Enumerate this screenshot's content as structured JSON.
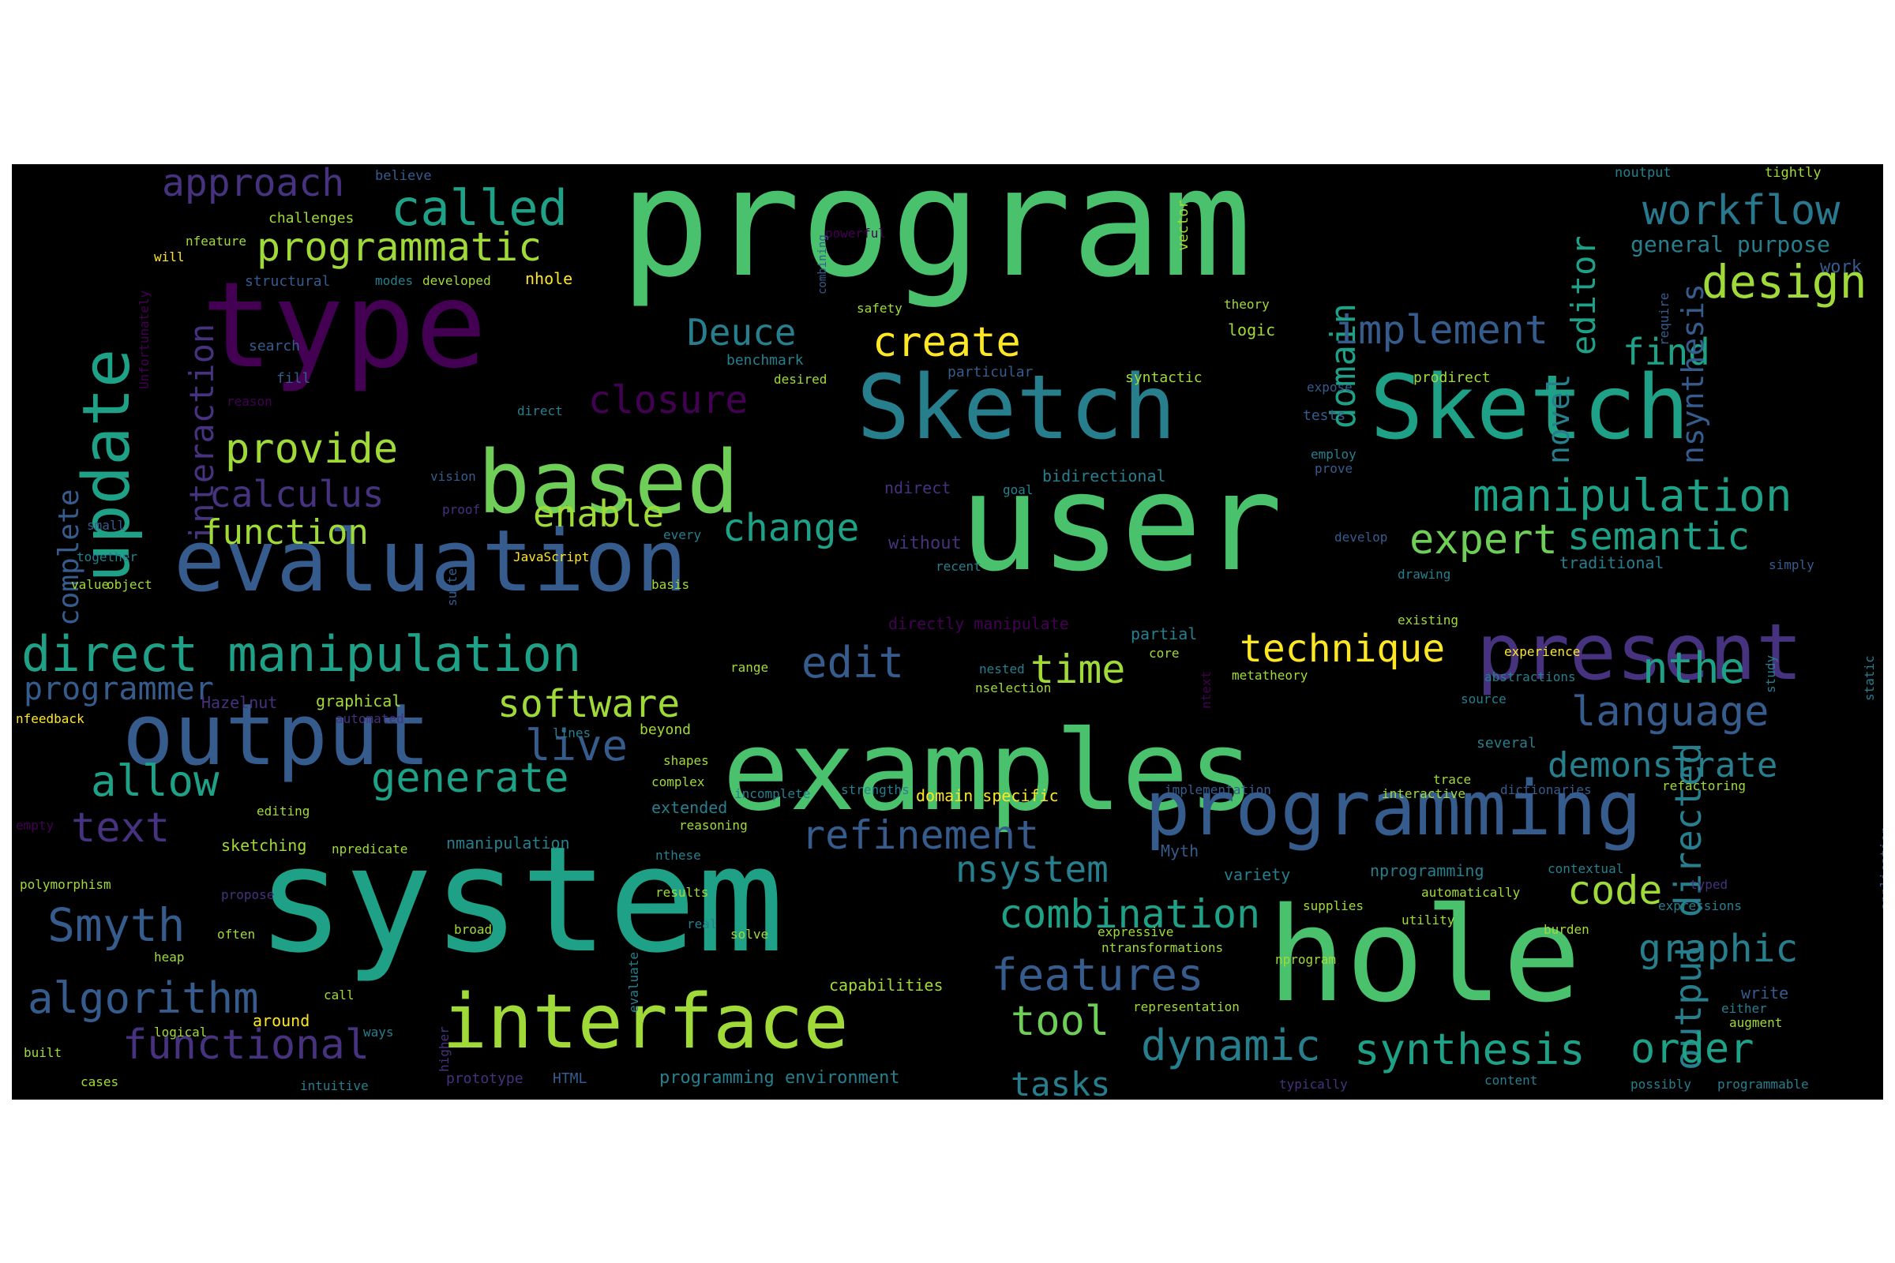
{
  "palette": [
    "#440154",
    "#46327e",
    "#365c8d",
    "#277f8e",
    "#1fa187",
    "#4ac16d",
    "#a0da39",
    "#fde725"
  ],
  "words": [
    {
      "text": "program",
      "c": "#4ac16d"
    },
    {
      "text": "user",
      "c": "#4ac16d"
    },
    {
      "text": "system",
      "c": "#1fa187"
    },
    {
      "text": "examples",
      "c": "#4ac16d"
    },
    {
      "text": "type",
      "c": "#440154"
    },
    {
      "text": "hole",
      "c": "#4ac16d"
    },
    {
      "text": "evaluation",
      "c": "#365c8d"
    },
    {
      "text": "Sketch",
      "c": "#277f8e"
    },
    {
      "text": "Sketch",
      "c": "#1fa187"
    },
    {
      "text": "output",
      "c": "#365c8d"
    },
    {
      "text": "programming",
      "c": "#365c8d"
    },
    {
      "text": "interface",
      "c": "#a0da39"
    },
    {
      "text": "based",
      "c": "#6ece58"
    },
    {
      "text": "present",
      "c": "#46327e"
    },
    {
      "text": "update",
      "c": "#1fa187"
    },
    {
      "text": "direct manipulation",
      "c": "#1fa187"
    },
    {
      "text": "called",
      "c": "#1fa187"
    },
    {
      "text": "approach",
      "c": "#46327e"
    },
    {
      "text": "programmatic",
      "c": "#a0da39"
    },
    {
      "text": "workflow",
      "c": "#2a788e"
    },
    {
      "text": "design",
      "c": "#a0da39"
    },
    {
      "text": "editor",
      "c": "#1fa187"
    },
    {
      "text": "domain",
      "c": "#1fa187"
    },
    {
      "text": "create",
      "c": "#fde725"
    },
    {
      "text": "implement",
      "c": "#365c8d"
    },
    {
      "text": "find",
      "c": "#1fa187"
    },
    {
      "text": "novel",
      "c": "#277f8e"
    },
    {
      "text": "nsynthesis",
      "c": "#365c8d"
    },
    {
      "text": "Deuce",
      "c": "#277f8e"
    },
    {
      "text": "closure",
      "c": "#440154"
    },
    {
      "text": "provide",
      "c": "#a0da39"
    },
    {
      "text": "interaction",
      "c": "#46327e"
    },
    {
      "text": "manipulation",
      "c": "#1fa187"
    },
    {
      "text": "semantic",
      "c": "#1fa187"
    },
    {
      "text": "calculus",
      "c": "#46327e"
    },
    {
      "text": "enable",
      "c": "#a0da39"
    },
    {
      "text": "change",
      "c": "#1fa187"
    },
    {
      "text": "expert",
      "c": "#6ece58"
    },
    {
      "text": "function",
      "c": "#a0da39"
    },
    {
      "text": "complete",
      "c": "#365c8d"
    },
    {
      "text": "technique",
      "c": "#fde725"
    },
    {
      "text": "edit",
      "c": "#365c8d"
    },
    {
      "text": "time",
      "c": "#a0da39"
    },
    {
      "text": "nthe",
      "c": "#1fa187"
    },
    {
      "text": "output directed",
      "c": "#277f8e"
    },
    {
      "text": "programmer",
      "c": "#365c8d"
    },
    {
      "text": "software",
      "c": "#a0da39"
    },
    {
      "text": "language",
      "c": "#365c8d"
    },
    {
      "text": "live",
      "c": "#365c8d"
    },
    {
      "text": "demonstrate",
      "c": "#277f8e"
    },
    {
      "text": "allow",
      "c": "#1fa187"
    },
    {
      "text": "generate",
      "c": "#1fa187"
    },
    {
      "text": "refinement",
      "c": "#365c8d"
    },
    {
      "text": "text",
      "c": "#46327e"
    },
    {
      "text": "nsystem",
      "c": "#277f8e"
    },
    {
      "text": "code",
      "c": "#a0da39"
    },
    {
      "text": "combination",
      "c": "#1fa187"
    },
    {
      "text": "Smyth",
      "c": "#365c8d"
    },
    {
      "text": "graphic",
      "c": "#277f8e"
    },
    {
      "text": "features",
      "c": "#365c8d"
    },
    {
      "text": "algorithm",
      "c": "#365c8d"
    },
    {
      "text": "tool",
      "c": "#6ece58"
    },
    {
      "text": "functional",
      "c": "#46327e"
    },
    {
      "text": "dynamic",
      "c": "#277f8e"
    },
    {
      "text": "synthesis",
      "c": "#1fa187"
    },
    {
      "text": "order",
      "c": "#1fa187"
    },
    {
      "text": "tasks",
      "c": "#277f8e"
    },
    {
      "text": "programming environment",
      "c": "#277f8e"
    },
    {
      "text": "believe",
      "c": "#365c8d"
    },
    {
      "text": "noutput",
      "c": "#277f8e"
    },
    {
      "text": "tightly",
      "c": "#a0da39"
    },
    {
      "text": "vector",
      "c": "#a0da39"
    },
    {
      "text": "powerful",
      "c": "#440154"
    },
    {
      "text": "general purpose",
      "c": "#277f8e"
    },
    {
      "text": "work",
      "c": "#365c8d"
    },
    {
      "text": "nfeature",
      "c": "#a0da39"
    },
    {
      "text": "will",
      "c": "#fde725"
    },
    {
      "text": "challenges",
      "c": "#a0da39"
    },
    {
      "text": "structural",
      "c": "#365c8d"
    },
    {
      "text": "modes",
      "c": "#277f8e"
    },
    {
      "text": "developed",
      "c": "#a0da39"
    },
    {
      "text": "nhole",
      "c": "#fde725"
    },
    {
      "text": "combining",
      "c": "#365c8d"
    },
    {
      "text": "theory",
      "c": "#a0da39"
    },
    {
      "text": "logic",
      "c": "#a0da39"
    },
    {
      "text": "safety",
      "c": "#a0da39"
    },
    {
      "text": "search",
      "c": "#365c8d"
    },
    {
      "text": "fill",
      "c": "#365c8d"
    },
    {
      "text": "benchmark",
      "c": "#277f8e"
    },
    {
      "text": "desired",
      "c": "#a0da39"
    },
    {
      "text": "particular",
      "c": "#365c8d"
    },
    {
      "text": "syntactic",
      "c": "#a0da39"
    },
    {
      "text": "prodirect",
      "c": "#a0da39"
    },
    {
      "text": "expose",
      "c": "#365c8d"
    },
    {
      "text": "tests",
      "c": "#365c8d"
    },
    {
      "text": "employ",
      "c": "#277f8e"
    },
    {
      "text": "prove",
      "c": "#365c8d"
    },
    {
      "text": "Unfortunately",
      "c": "#440154"
    },
    {
      "text": "require",
      "c": "#365c8d"
    },
    {
      "text": "reason",
      "c": "#440154"
    },
    {
      "text": "direct",
      "c": "#277f8e"
    },
    {
      "text": "vision",
      "c": "#365c8d"
    },
    {
      "text": "bidirectional",
      "c": "#277f8e"
    },
    {
      "text": "ndirect",
      "c": "#46327e"
    },
    {
      "text": "goal",
      "c": "#277f8e"
    },
    {
      "text": "small",
      "c": "#365c8d"
    },
    {
      "text": "proof",
      "c": "#46327e"
    },
    {
      "text": "every",
      "c": "#277f8e"
    },
    {
      "text": "without",
      "c": "#46327e"
    },
    {
      "text": "develop",
      "c": "#365c8d"
    },
    {
      "text": "together",
      "c": "#277f8e"
    },
    {
      "text": "JavaScript",
      "c": "#fde725"
    },
    {
      "text": "recent",
      "c": "#277f8e"
    },
    {
      "text": "traditional",
      "c": "#277f8e"
    },
    {
      "text": "simply",
      "c": "#365c8d"
    },
    {
      "text": "value",
      "c": "#a0da39"
    },
    {
      "text": "object",
      "c": "#a0da39"
    },
    {
      "text": "suite",
      "c": "#365c8d"
    },
    {
      "text": "basis",
      "c": "#a0da39"
    },
    {
      "text": "drawing",
      "c": "#277f8e"
    },
    {
      "text": "directly manipulate",
      "c": "#440154"
    },
    {
      "text": "partial",
      "c": "#277f8e"
    },
    {
      "text": "existing",
      "c": "#a0da39"
    },
    {
      "text": "experience",
      "c": "#fde725"
    },
    {
      "text": "core",
      "c": "#a0da39"
    },
    {
      "text": "metatheory",
      "c": "#a0da39"
    },
    {
      "text": "abstractions",
      "c": "#277f8e"
    },
    {
      "text": "study",
      "c": "#277f8e"
    },
    {
      "text": "static",
      "c": "#277f8e"
    },
    {
      "text": "nfeedback",
      "c": "#fde725"
    },
    {
      "text": "Hazelnut",
      "c": "#46327e"
    },
    {
      "text": "graphical",
      "c": "#a0da39"
    },
    {
      "text": "range",
      "c": "#a0da39"
    },
    {
      "text": "nested",
      "c": "#277f8e"
    },
    {
      "text": "nselection",
      "c": "#a0da39"
    },
    {
      "text": "ntext",
      "c": "#440154"
    },
    {
      "text": "source",
      "c": "#277f8e"
    },
    {
      "text": "automated",
      "c": "#46327e"
    },
    {
      "text": "lines",
      "c": "#277f8e"
    },
    {
      "text": "beyond",
      "c": "#a0da39"
    },
    {
      "text": "shapes",
      "c": "#a0da39"
    },
    {
      "text": "several",
      "c": "#277f8e"
    },
    {
      "text": "complex",
      "c": "#a0da39"
    },
    {
      "text": "trace",
      "c": "#a0da39"
    },
    {
      "text": "incomplete",
      "c": "#277f8e"
    },
    {
      "text": "strengths",
      "c": "#277f8e"
    },
    {
      "text": "domain specific",
      "c": "#fde725"
    },
    {
      "text": "implementation",
      "c": "#365c8d"
    },
    {
      "text": "interactive",
      "c": "#a0da39"
    },
    {
      "text": "dictionaries",
      "c": "#365c8d"
    },
    {
      "text": "refactoring",
      "c": "#a0da39"
    },
    {
      "text": "editing",
      "c": "#a0da39"
    },
    {
      "text": "extended",
      "c": "#277f8e"
    },
    {
      "text": "empty",
      "c": "#440154"
    },
    {
      "text": "reasoning",
      "c": "#a0da39"
    },
    {
      "text": "sketching",
      "c": "#a0da39"
    },
    {
      "text": "npredicate",
      "c": "#a0da39"
    },
    {
      "text": "nmanipulation",
      "c": "#277f8e"
    },
    {
      "text": "nthese",
      "c": "#277f8e"
    },
    {
      "text": "Myth",
      "c": "#365c8d"
    },
    {
      "text": "variety",
      "c": "#277f8e"
    },
    {
      "text": "nprogramming",
      "c": "#277f8e"
    },
    {
      "text": "contextual",
      "c": "#277f8e"
    },
    {
      "text": "typed",
      "c": "#46327e"
    },
    {
      "text": "polymorphism",
      "c": "#a0da39"
    },
    {
      "text": "propose",
      "c": "#46327e"
    },
    {
      "text": "results",
      "c": "#a0da39"
    },
    {
      "text": "supplies",
      "c": "#a0da39"
    },
    {
      "text": "automatically",
      "c": "#a0da39"
    },
    {
      "text": "expressions",
      "c": "#277f8e"
    },
    {
      "text": "application",
      "c": "#365c8d"
    },
    {
      "text": "often",
      "c": "#a0da39"
    },
    {
      "text": "broad",
      "c": "#a0da39"
    },
    {
      "text": "real",
      "c": "#277f8e"
    },
    {
      "text": "solve",
      "c": "#a0da39"
    },
    {
      "text": "expressive",
      "c": "#a0da39"
    },
    {
      "text": "utility",
      "c": "#a0da39"
    },
    {
      "text": "burden",
      "c": "#a0da39"
    },
    {
      "text": "evaluate",
      "c": "#277f8e"
    },
    {
      "text": "ntransformations",
      "c": "#a0da39"
    },
    {
      "text": "nprogram",
      "c": "#a0da39"
    },
    {
      "text": "heap",
      "c": "#a0da39"
    },
    {
      "text": "call",
      "c": "#a0da39"
    },
    {
      "text": "capabilities",
      "c": "#a0da39"
    },
    {
      "text": "representation",
      "c": "#a0da39"
    },
    {
      "text": "either",
      "c": "#277f8e"
    },
    {
      "text": "write",
      "c": "#365c8d"
    },
    {
      "text": "logical",
      "c": "#a0da39"
    },
    {
      "text": "around",
      "c": "#fde725"
    },
    {
      "text": "augment",
      "c": "#a0da39"
    },
    {
      "text": "ways",
      "c": "#277f8e"
    },
    {
      "text": "built",
      "c": "#a0da39"
    },
    {
      "text": "higher",
      "c": "#46327e"
    },
    {
      "text": "cases",
      "c": "#a0da39"
    },
    {
      "text": "prototype",
      "c": "#46327e"
    },
    {
      "text": "HTML",
      "c": "#365c8d"
    },
    {
      "text": "intuitive",
      "c": "#277f8e"
    },
    {
      "text": "typically",
      "c": "#46327e"
    },
    {
      "text": "content",
      "c": "#277f8e"
    },
    {
      "text": "possibly",
      "c": "#277f8e"
    },
    {
      "text": "programmable",
      "c": "#277f8e"
    }
  ]
}
